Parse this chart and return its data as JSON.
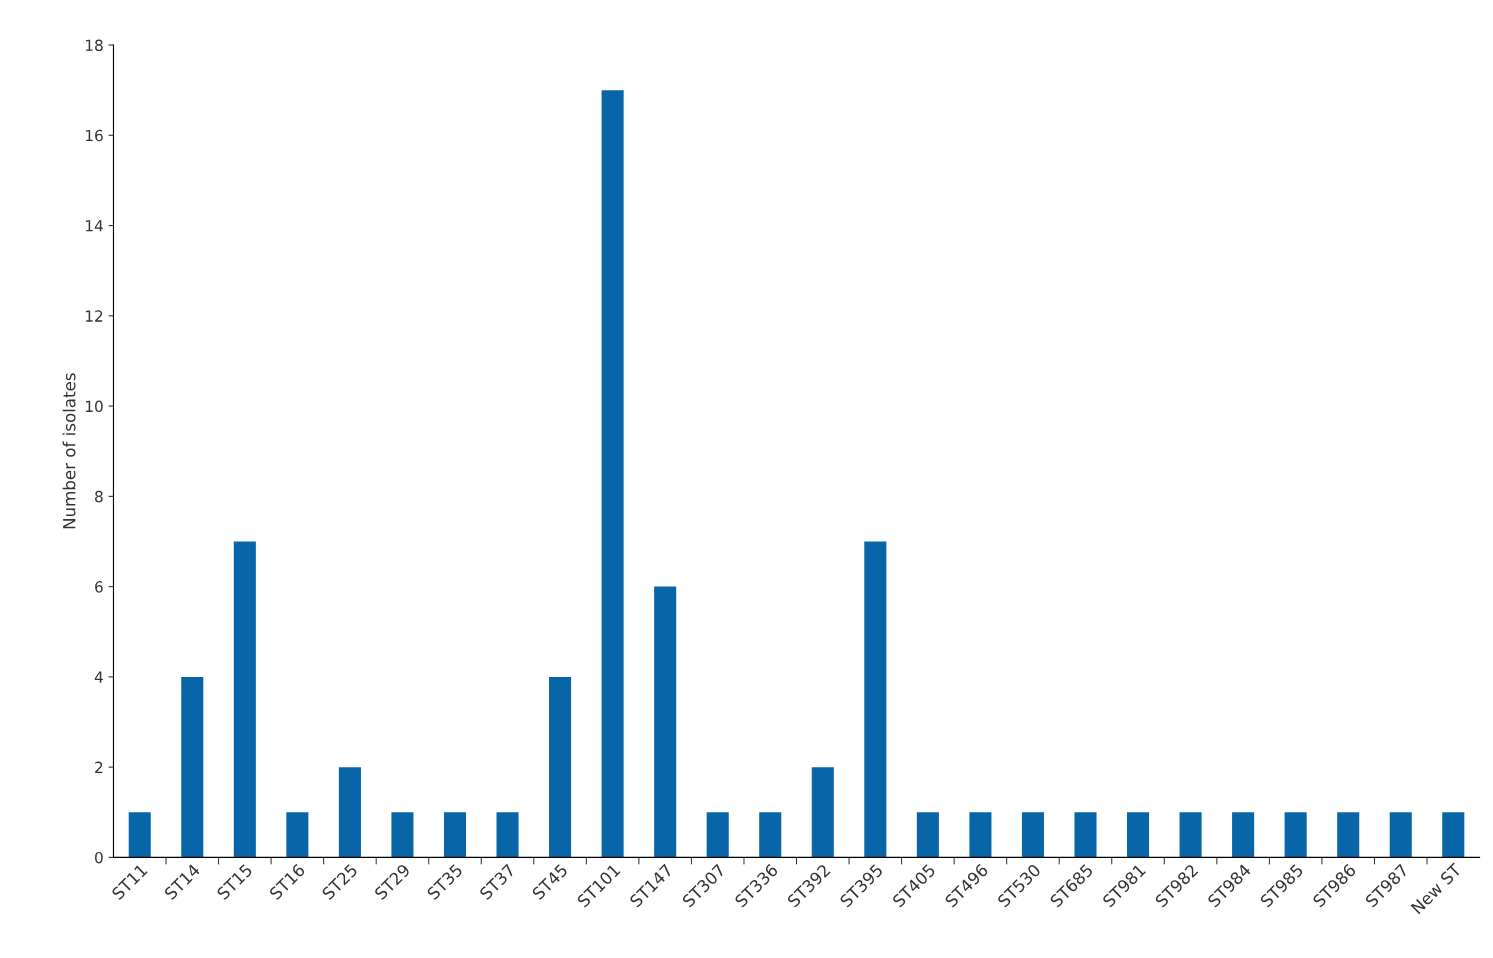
{
  "chart_data": {
    "type": "bar",
    "ylabel": "Number of isolates",
    "categories": [
      "ST11",
      "ST14",
      "ST15",
      "ST16",
      "ST25",
      "ST29",
      "ST35",
      "ST37",
      "ST45",
      "ST101",
      "ST147",
      "ST307",
      "ST336",
      "ST392",
      "ST395",
      "ST405",
      "ST496",
      "ST530",
      "ST685",
      "ST981",
      "ST982",
      "ST984",
      "ST985",
      "ST986",
      "ST987",
      "New ST"
    ],
    "values": [
      1,
      4,
      7,
      1,
      2,
      1,
      1,
      1,
      4,
      17,
      6,
      1,
      1,
      2,
      7,
      1,
      1,
      1,
      1,
      1,
      1,
      1,
      1,
      1,
      1,
      1
    ],
    "color": "#0866a8",
    "ylim": [
      0,
      18
    ],
    "yticks": [
      0,
      2,
      4,
      6,
      8,
      10,
      12,
      14,
      16,
      18
    ],
    "grid": false,
    "legend": false
  }
}
